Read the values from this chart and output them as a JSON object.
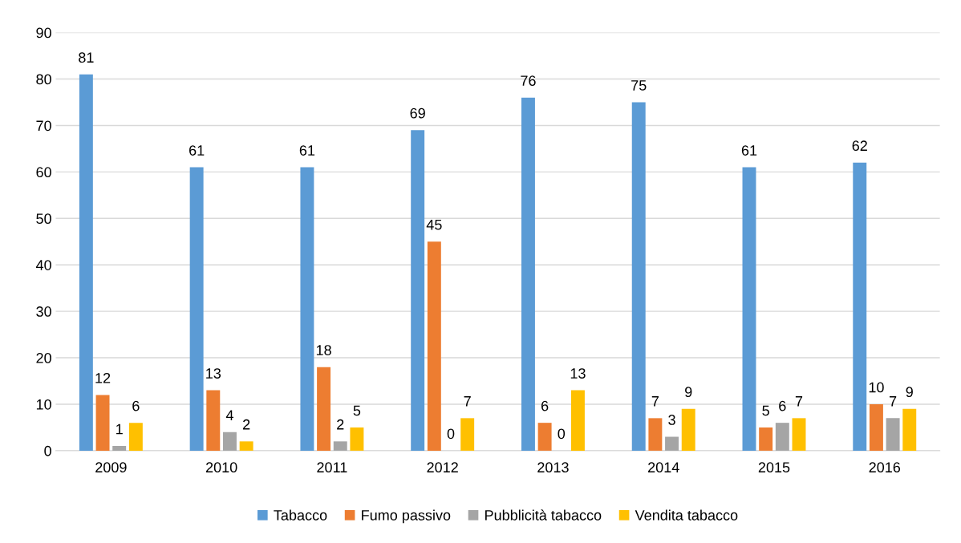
{
  "chart_data": {
    "type": "bar",
    "categories": [
      "2009",
      "2010",
      "2011",
      "2012",
      "2013",
      "2014",
      "2015",
      "2016"
    ],
    "series": [
      {
        "name": "Tabacco",
        "color": "#5b9bd5",
        "values": [
          81,
          61,
          61,
          69,
          76,
          75,
          61,
          62
        ]
      },
      {
        "name": "Fumo passivo",
        "color": "#ed7d31",
        "values": [
          12,
          13,
          18,
          45,
          6,
          7,
          5,
          10
        ]
      },
      {
        "name": "Pubblicità tabacco",
        "color": "#a5a5a5",
        "values": [
          1,
          4,
          2,
          0,
          0,
          3,
          6,
          7
        ]
      },
      {
        "name": "Vendita tabacco",
        "color": "#ffc000",
        "values": [
          6,
          2,
          5,
          7,
          13,
          9,
          7,
          9
        ]
      }
    ],
    "ylim": [
      0,
      90
    ],
    "yticks": [
      0,
      10,
      20,
      30,
      40,
      50,
      60,
      70,
      80,
      90
    ],
    "grid": "y",
    "legend": "bottom",
    "data_labels": true
  }
}
